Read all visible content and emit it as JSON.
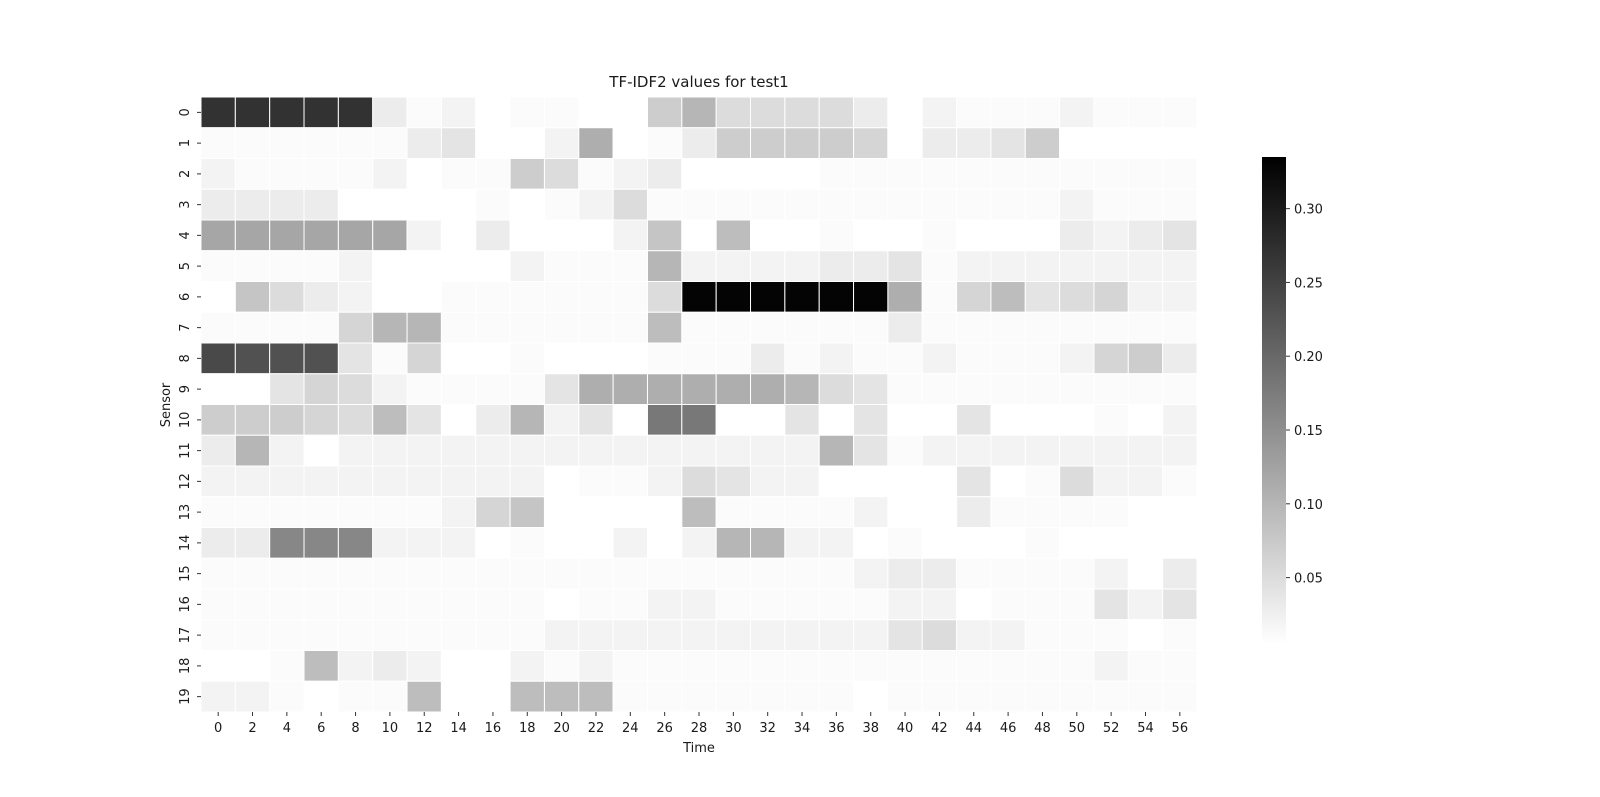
{
  "chart_data": {
    "type": "heatmap",
    "title": "TF-IDF2 values for test1",
    "xlabel": "Time",
    "ylabel": "Sensor",
    "x_tick_labels": [
      "0",
      "2",
      "4",
      "6",
      "8",
      "10",
      "12",
      "14",
      "16",
      "18",
      "20",
      "22",
      "24",
      "26",
      "28",
      "30",
      "32",
      "34",
      "36",
      "38",
      "40",
      "42",
      "44",
      "46",
      "48",
      "50",
      "52",
      "54",
      "56"
    ],
    "y_tick_labels": [
      "0",
      "1",
      "2",
      "3",
      "4",
      "5",
      "6",
      "7",
      "8",
      "9",
      "10",
      "11",
      "12",
      "13",
      "14",
      "15",
      "16",
      "17",
      "18",
      "19"
    ],
    "colorbar": {
      "min": 0.005,
      "max": 0.335,
      "ticks": [
        0.05,
        0.1,
        0.15,
        0.2,
        0.25,
        0.3
      ],
      "tick_labels": [
        "0.05",
        "0.10",
        "0.15",
        "0.20",
        "0.25",
        "0.30"
      ],
      "colormap": "greys",
      "low_color": "#ffffff",
      "high_color": "#000000"
    },
    "grid": false,
    "cell_separator_color": "#ffffff",
    "values": [
      [
        0.27,
        0.27,
        0.27,
        0.27,
        0.27,
        0.03,
        0.01,
        0.02,
        0.0,
        0.01,
        0.01,
        0.0,
        0.0,
        0.07,
        0.1,
        0.05,
        0.05,
        0.05,
        0.05,
        0.03,
        0.0,
        0.02,
        0.01,
        0.01,
        0.01,
        0.02,
        0.01,
        0.01,
        0.01
      ],
      [
        0.01,
        0.01,
        0.01,
        0.01,
        0.01,
        0.01,
        0.03,
        0.04,
        0.0,
        0.0,
        0.02,
        0.11,
        0.0,
        0.01,
        0.03,
        0.07,
        0.07,
        0.07,
        0.07,
        0.06,
        0.0,
        0.03,
        0.03,
        0.04,
        0.07,
        0.0,
        0.0,
        0.0,
        0.0
      ],
      [
        0.02,
        0.01,
        0.01,
        0.01,
        0.01,
        0.02,
        0.0,
        0.01,
        0.01,
        0.07,
        0.05,
        0.01,
        0.02,
        0.03,
        0.0,
        0.0,
        0.0,
        0.0,
        0.01,
        0.01,
        0.01,
        0.01,
        0.01,
        0.01,
        0.01,
        0.01,
        0.01,
        0.01,
        0.01
      ],
      [
        0.03,
        0.03,
        0.03,
        0.03,
        0.0,
        0.0,
        0.0,
        0.0,
        0.01,
        0.0,
        0.01,
        0.02,
        0.05,
        0.01,
        0.01,
        0.01,
        0.01,
        0.01,
        0.01,
        0.01,
        0.01,
        0.01,
        0.01,
        0.01,
        0.01,
        0.02,
        0.01,
        0.01,
        0.01
      ],
      [
        0.12,
        0.12,
        0.12,
        0.12,
        0.12,
        0.12,
        0.02,
        0.0,
        0.03,
        0.0,
        0.0,
        0.0,
        0.02,
        0.08,
        0.0,
        0.09,
        0.0,
        0.0,
        0.01,
        0.0,
        0.0,
        0.01,
        0.0,
        0.0,
        0.0,
        0.03,
        0.02,
        0.03,
        0.04
      ],
      [
        0.01,
        0.01,
        0.01,
        0.01,
        0.02,
        0.0,
        0.0,
        0.0,
        0.0,
        0.02,
        0.01,
        0.01,
        0.01,
        0.1,
        0.02,
        0.02,
        0.02,
        0.02,
        0.03,
        0.03,
        0.04,
        0.01,
        0.02,
        0.02,
        0.02,
        0.02,
        0.02,
        0.02,
        0.02
      ],
      [
        0.0,
        0.08,
        0.05,
        0.03,
        0.02,
        0.0,
        0.0,
        0.01,
        0.01,
        0.01,
        0.01,
        0.01,
        0.01,
        0.05,
        0.33,
        0.33,
        0.33,
        0.33,
        0.33,
        0.33,
        0.11,
        0.01,
        0.06,
        0.09,
        0.04,
        0.05,
        0.06,
        0.02,
        0.02
      ],
      [
        0.01,
        0.01,
        0.01,
        0.01,
        0.06,
        0.1,
        0.1,
        0.01,
        0.01,
        0.01,
        0.01,
        0.01,
        0.01,
        0.09,
        0.01,
        0.01,
        0.01,
        0.01,
        0.01,
        0.01,
        0.03,
        0.01,
        0.01,
        0.01,
        0.01,
        0.01,
        0.01,
        0.01,
        0.01
      ],
      [
        0.24,
        0.23,
        0.23,
        0.23,
        0.04,
        0.01,
        0.06,
        0.0,
        0.0,
        0.01,
        0.0,
        0.0,
        0.0,
        0.01,
        0.01,
        0.01,
        0.03,
        0.01,
        0.02,
        0.01,
        0.01,
        0.02,
        0.01,
        0.01,
        0.01,
        0.02,
        0.06,
        0.07,
        0.03
      ],
      [
        0.0,
        0.0,
        0.04,
        0.06,
        0.05,
        0.02,
        0.01,
        0.01,
        0.01,
        0.01,
        0.04,
        0.11,
        0.11,
        0.11,
        0.11,
        0.11,
        0.11,
        0.1,
        0.05,
        0.04,
        0.01,
        0.01,
        0.01,
        0.01,
        0.01,
        0.01,
        0.01,
        0.01,
        0.01
      ],
      [
        0.07,
        0.07,
        0.07,
        0.06,
        0.05,
        0.09,
        0.04,
        0.0,
        0.03,
        0.1,
        0.02,
        0.04,
        0.0,
        0.18,
        0.18,
        0.0,
        0.0,
        0.04,
        0.0,
        0.04,
        0.0,
        0.0,
        0.04,
        0.0,
        0.0,
        0.0,
        0.01,
        0.0,
        0.02
      ],
      [
        0.03,
        0.1,
        0.02,
        0.0,
        0.02,
        0.02,
        0.02,
        0.02,
        0.02,
        0.02,
        0.02,
        0.02,
        0.02,
        0.02,
        0.02,
        0.02,
        0.02,
        0.02,
        0.1,
        0.04,
        0.01,
        0.02,
        0.02,
        0.02,
        0.02,
        0.02,
        0.02,
        0.02,
        0.02
      ],
      [
        0.02,
        0.02,
        0.02,
        0.02,
        0.02,
        0.02,
        0.02,
        0.02,
        0.02,
        0.02,
        0.0,
        0.01,
        0.01,
        0.02,
        0.05,
        0.04,
        0.02,
        0.02,
        0.0,
        0.0,
        0.0,
        0.0,
        0.04,
        0.0,
        0.01,
        0.05,
        0.02,
        0.02,
        0.01
      ],
      [
        0.01,
        0.01,
        0.01,
        0.01,
        0.01,
        0.01,
        0.01,
        0.02,
        0.06,
        0.08,
        0.0,
        0.0,
        0.0,
        0.0,
        0.09,
        0.01,
        0.01,
        0.01,
        0.01,
        0.02,
        0.0,
        0.0,
        0.03,
        0.01,
        0.01,
        0.01,
        0.01,
        0.0,
        0.0
      ],
      [
        0.03,
        0.03,
        0.16,
        0.16,
        0.16,
        0.02,
        0.02,
        0.02,
        0.0,
        0.01,
        0.0,
        0.0,
        0.02,
        0.0,
        0.02,
        0.1,
        0.1,
        0.02,
        0.02,
        0.0,
        0.01,
        0.0,
        0.0,
        0.0,
        0.01,
        0.0,
        0.0,
        0.0,
        0.0
      ],
      [
        0.01,
        0.01,
        0.01,
        0.01,
        0.01,
        0.01,
        0.01,
        0.01,
        0.01,
        0.01,
        0.01,
        0.01,
        0.01,
        0.01,
        0.01,
        0.01,
        0.01,
        0.01,
        0.01,
        0.02,
        0.03,
        0.03,
        0.01,
        0.01,
        0.01,
        0.01,
        0.02,
        0.0,
        0.03
      ],
      [
        0.01,
        0.01,
        0.01,
        0.01,
        0.01,
        0.01,
        0.01,
        0.01,
        0.01,
        0.01,
        0.0,
        0.01,
        0.01,
        0.02,
        0.02,
        0.01,
        0.01,
        0.01,
        0.01,
        0.01,
        0.02,
        0.02,
        0.0,
        0.01,
        0.01,
        0.01,
        0.04,
        0.02,
        0.04
      ],
      [
        0.01,
        0.01,
        0.01,
        0.01,
        0.01,
        0.01,
        0.01,
        0.01,
        0.01,
        0.01,
        0.02,
        0.02,
        0.02,
        0.02,
        0.02,
        0.02,
        0.02,
        0.02,
        0.02,
        0.02,
        0.04,
        0.05,
        0.02,
        0.02,
        0.01,
        0.01,
        0.01,
        0.0,
        0.01
      ],
      [
        0.0,
        0.0,
        0.01,
        0.09,
        0.02,
        0.03,
        0.02,
        0.0,
        0.0,
        0.02,
        0.01,
        0.02,
        0.01,
        0.01,
        0.01,
        0.01,
        0.01,
        0.01,
        0.01,
        0.01,
        0.01,
        0.01,
        0.01,
        0.01,
        0.01,
        0.01,
        0.02,
        0.01,
        0.01
      ],
      [
        0.02,
        0.02,
        0.01,
        0.0,
        0.01,
        0.01,
        0.09,
        0.0,
        0.0,
        0.09,
        0.09,
        0.09,
        0.01,
        0.01,
        0.01,
        0.01,
        0.01,
        0.01,
        0.01,
        0.0,
        0.01,
        0.01,
        0.01,
        0.01,
        0.01,
        0.01,
        0.01,
        0.01,
        0.01
      ]
    ]
  }
}
